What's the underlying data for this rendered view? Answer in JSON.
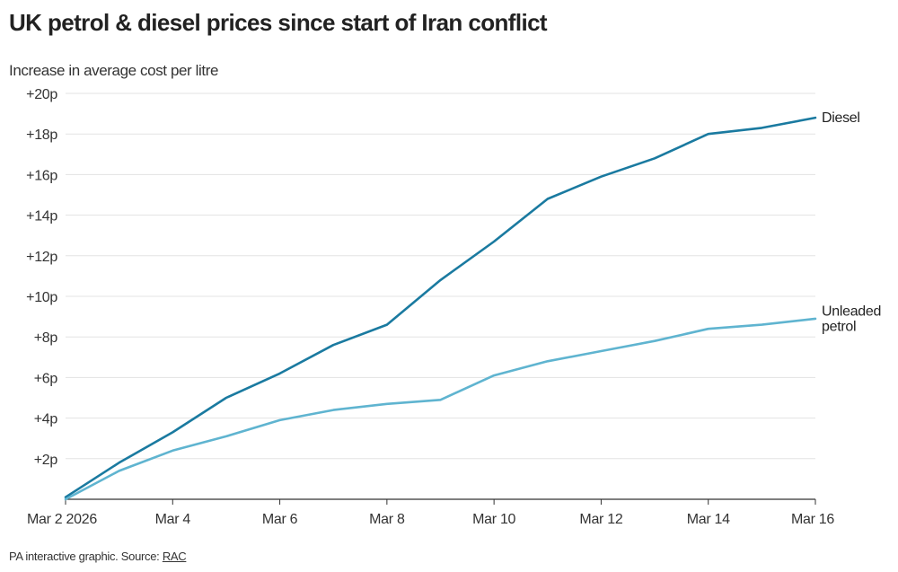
{
  "title": "UK petrol & diesel prices since start of Iran conflict",
  "footer": {
    "text": "PA interactive graphic. Source: ",
    "link": "RAC"
  },
  "chart_data": {
    "type": "line",
    "title": "UK petrol & diesel prices since start of Iran conflict",
    "ylabel": "Increase in average cost per litre",
    "xlabel": "",
    "x": [
      "2026-03-02",
      "2026-03-03",
      "2026-03-04",
      "2026-03-05",
      "2026-03-06",
      "2026-03-07",
      "2026-03-08",
      "2026-03-09",
      "2026-03-10",
      "2026-03-11",
      "2026-03-12",
      "2026-03-13",
      "2026-03-14",
      "2026-03-15",
      "2026-03-16"
    ],
    "x_ticks": [
      {
        "x": "2026-03-02",
        "label": "Mar 2 2026"
      },
      {
        "x": "2026-03-04",
        "label": "Mar 4"
      },
      {
        "x": "2026-03-06",
        "label": "Mar 6"
      },
      {
        "x": "2026-03-08",
        "label": "Mar 8"
      },
      {
        "x": "2026-03-10",
        "label": "Mar 10"
      },
      {
        "x": "2026-03-12",
        "label": "Mar 12"
      },
      {
        "x": "2026-03-14",
        "label": "Mar 14"
      },
      {
        "x": "2026-03-16",
        "label": "Mar 16"
      }
    ],
    "ylim": [
      0,
      20
    ],
    "y_ticks": [
      {
        "value": 2,
        "label": "+2p"
      },
      {
        "value": 4,
        "label": "+4p"
      },
      {
        "value": 6,
        "label": "+6p"
      },
      {
        "value": 8,
        "label": "+8p"
      },
      {
        "value": 10,
        "label": "+10p"
      },
      {
        "value": 12,
        "label": "+12p"
      },
      {
        "value": 14,
        "label": "+14p"
      },
      {
        "value": 16,
        "label": "+16p"
      },
      {
        "value": 18,
        "label": "+18p"
      },
      {
        "value": 20,
        "label": "+20p"
      }
    ],
    "grid": true,
    "series": [
      {
        "key": "diesel",
        "name": "Diesel",
        "label_lines": [
          "Diesel"
        ],
        "color": "#1a7aa0",
        "values": [
          0.1,
          1.8,
          3.3,
          5.0,
          6.2,
          7.6,
          8.6,
          10.8,
          12.7,
          14.8,
          15.9,
          16.8,
          18.0,
          18.3,
          18.8
        ]
      },
      {
        "key": "unleaded",
        "name": "Unleaded petrol",
        "label_lines": [
          "Unleaded",
          "petrol"
        ],
        "color": "#5fb4d0",
        "values": [
          0.0,
          1.4,
          2.4,
          3.1,
          3.9,
          4.4,
          4.7,
          4.9,
          6.1,
          6.8,
          7.3,
          7.8,
          8.4,
          8.6,
          8.9
        ]
      }
    ]
  }
}
